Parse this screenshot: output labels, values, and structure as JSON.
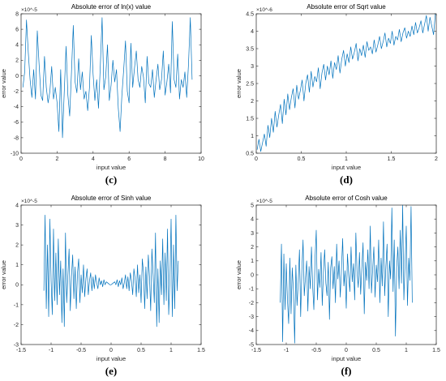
{
  "chart_data": [
    {
      "type": "line",
      "title": "Absolute error of ln(x) value",
      "xlabel": "input value",
      "ylabel": "error value",
      "exponent_label": "×10^-5",
      "panel_label": "(c)",
      "xlim": [
        0,
        10
      ],
      "ylim": [
        -10,
        8
      ],
      "xticks": [
        "0",
        "2",
        "4",
        "6",
        "8",
        "10"
      ],
      "yticks": [
        "-10",
        "-8",
        "-6",
        "-4",
        "-2",
        "0",
        "2",
        "4",
        "6",
        "8"
      ],
      "line_color": "#0072BD",
      "series": [
        {
          "x": [
            0.1,
            0.2,
            0.3,
            0.4,
            0.5,
            0.6,
            0.7,
            0.8,
            0.9,
            1.0,
            1.1,
            1.2,
            1.3,
            1.4,
            1.5,
            1.6,
            1.7,
            1.8,
            1.9,
            2.0,
            2.1,
            2.2,
            2.3,
            2.4,
            2.5,
            2.6,
            2.7,
            2.8,
            2.9,
            3.0,
            3.1,
            3.2,
            3.3,
            3.4,
            3.5,
            3.6,
            3.7,
            3.8,
            3.9,
            4.0,
            4.1,
            4.2,
            4.3,
            4.4,
            4.5,
            4.6,
            4.7,
            4.8,
            4.9,
            5.0,
            5.1,
            5.2,
            5.3,
            5.4,
            5.5,
            5.6,
            5.7,
            5.8,
            5.9,
            6.0,
            6.1,
            6.2,
            6.3,
            6.4,
            6.5,
            6.6,
            6.7,
            6.8,
            6.9,
            7.0,
            7.1,
            7.2,
            7.3,
            7.4,
            7.5,
            7.6,
            7.7,
            7.8,
            7.9,
            8.0,
            8.1,
            8.2,
            8.3,
            8.4,
            8.5,
            8.6,
            8.7,
            8.8,
            8.9,
            9.0,
            9.1,
            9.2,
            9.3,
            9.4,
            9.5
          ],
          "y": [
            -1.5,
            0.5,
            7.2,
            3,
            -0.5,
            -2.8,
            0.8,
            -3,
            5.8,
            1.5,
            -2.5,
            -3.2,
            2.5,
            -1.5,
            -3.5,
            -2,
            1.2,
            -3,
            -1.5,
            -3.5,
            -7.2,
            0.8,
            -8,
            -2,
            3.8,
            -2.5,
            -5.2,
            0.5,
            6.5,
            -0.8,
            -2.2,
            2.2,
            -1.8,
            0.5,
            -3,
            -2,
            -4.5,
            -1.5,
            5.2,
            0.2,
            -3.2,
            -0.5,
            -4.2,
            1.2,
            7.5,
            -1.8,
            -0.2,
            4,
            -3.2,
            -1.2,
            2,
            -0.8,
            0.8,
            -4.2,
            -7.2,
            -2.5,
            0.8,
            4.5,
            -2,
            -3.5,
            4.2,
            -1.5,
            1,
            3.2,
            -0.5,
            -1.5,
            1.2,
            -0.2,
            -3.5,
            2.5,
            -1,
            -1.5,
            0.8,
            -2.8,
            -0.5,
            1.5,
            -1.8,
            -0.5,
            3.2,
            -2.5,
            -0.8,
            1.5,
            -2.2,
            7,
            -0.5,
            -1.5,
            2.8,
            -3,
            -0.5,
            -1.5,
            0.5,
            -2.8,
            1.5,
            7.5,
            -0.5
          ]
        }
      ]
    },
    {
      "type": "line",
      "title": "Absolute error of Sqrt value",
      "xlabel": "input value",
      "ylabel": "error value",
      "exponent_label": "×10^-6",
      "panel_label": "(d)",
      "xlim": [
        0,
        2
      ],
      "ylim": [
        0.5,
        4.5
      ],
      "xticks": [
        "0",
        "0.5",
        "1",
        "1.5",
        "2"
      ],
      "yticks": [
        "0.5",
        "1",
        "1.5",
        "2",
        "2.5",
        "3",
        "3.5",
        "4",
        "4.5"
      ],
      "line_color": "#0072BD",
      "series": [
        {
          "x": [
            0.01,
            0.03,
            0.05,
            0.07,
            0.09,
            0.11,
            0.13,
            0.15,
            0.17,
            0.19,
            0.21,
            0.23,
            0.25,
            0.27,
            0.29,
            0.31,
            0.33,
            0.35,
            0.37,
            0.39,
            0.41,
            0.43,
            0.45,
            0.47,
            0.49,
            0.51,
            0.53,
            0.55,
            0.57,
            0.59,
            0.61,
            0.63,
            0.65,
            0.67,
            0.69,
            0.71,
            0.73,
            0.75,
            0.77,
            0.79,
            0.81,
            0.83,
            0.85,
            0.87,
            0.89,
            0.91,
            0.93,
            0.95,
            0.97,
            0.99,
            1.01,
            1.03,
            1.05,
            1.07,
            1.09,
            1.11,
            1.13,
            1.15,
            1.17,
            1.19,
            1.21,
            1.23,
            1.25,
            1.27,
            1.29,
            1.31,
            1.33,
            1.35,
            1.37,
            1.39,
            1.41,
            1.43,
            1.45,
            1.47,
            1.49,
            1.51,
            1.53,
            1.55,
            1.57,
            1.59,
            1.61,
            1.63,
            1.65,
            1.67,
            1.69,
            1.71,
            1.73,
            1.75,
            1.77,
            1.79,
            1.81,
            1.83,
            1.85,
            1.87,
            1.89,
            1.91,
            1.93,
            1.95,
            1.97,
            1.99
          ],
          "y": [
            0.6,
            0.9,
            0.55,
            0.8,
            1.05,
            0.7,
            1.3,
            0.95,
            1.5,
            1.1,
            1.7,
            1.25,
            1.6,
            1.9,
            1.35,
            2.05,
            1.6,
            2.2,
            1.75,
            2.1,
            2.35,
            1.8,
            2.45,
            2.05,
            2.3,
            2.6,
            2.0,
            2.5,
            2.75,
            2.25,
            2.85,
            2.4,
            2.7,
            2.55,
            2.95,
            2.35,
            2.8,
            3.05,
            2.6,
            3.0,
            2.75,
            3.15,
            2.65,
            3.1,
            2.9,
            3.3,
            2.8,
            3.2,
            3.45,
            3.0,
            3.35,
            3.1,
            3.55,
            3.2,
            3.4,
            3.65,
            3.15,
            3.5,
            3.3,
            3.6,
            3.25,
            3.7,
            3.45,
            3.55,
            3.35,
            3.75,
            3.4,
            3.6,
            3.85,
            3.5,
            3.7,
            3.95,
            3.55,
            3.8,
            3.65,
            4.0,
            3.6,
            3.85,
            3.75,
            4.05,
            3.7,
            3.95,
            4.1,
            3.8,
            4.0,
            3.85,
            4.15,
            3.9,
            4.25,
            3.95,
            4.1,
            4.3,
            3.95,
            4.2,
            4.45,
            4.0,
            4.4,
            4.15,
            3.9,
            4.5
          ]
        }
      ]
    },
    {
      "type": "line",
      "title": "Absolute error of Sinh value",
      "xlabel": "input value",
      "ylabel": "error value",
      "exponent_label": "×10^-5",
      "panel_label": "(e)",
      "xlim": [
        -1.5,
        1.5
      ],
      "ylim": [
        -3,
        4
      ],
      "xticks": [
        "-1.5",
        "-1",
        "-0.5",
        "0",
        "0.5",
        "1",
        "1.5"
      ],
      "yticks": [
        "-3",
        "-2",
        "-1",
        "0",
        "1",
        "2",
        "3",
        "4"
      ],
      "line_color": "#0072BD",
      "series": [
        {
          "x": [
            -1.12,
            -1.1,
            -1.08,
            -1.06,
            -1.04,
            -1.02,
            -1.0,
            -0.98,
            -0.96,
            -0.94,
            -0.92,
            -0.9,
            -0.88,
            -0.86,
            -0.84,
            -0.82,
            -0.8,
            -0.78,
            -0.76,
            -0.74,
            -0.72,
            -0.7,
            -0.68,
            -0.66,
            -0.64,
            -0.62,
            -0.6,
            -0.58,
            -0.56,
            -0.54,
            -0.52,
            -0.5,
            -0.48,
            -0.46,
            -0.44,
            -0.42,
            -0.4,
            -0.38,
            -0.36,
            -0.34,
            -0.32,
            -0.3,
            -0.28,
            -0.26,
            -0.24,
            -0.22,
            -0.2,
            -0.18,
            -0.16,
            -0.14,
            -0.12,
            -0.1,
            -0.08,
            -0.06,
            -0.04,
            -0.02,
            0.0,
            0.02,
            0.04,
            0.06,
            0.08,
            0.1,
            0.12,
            0.14,
            0.16,
            0.18,
            0.2,
            0.22,
            0.24,
            0.26,
            0.28,
            0.3,
            0.32,
            0.34,
            0.36,
            0.38,
            0.4,
            0.42,
            0.44,
            0.46,
            0.48,
            0.5,
            0.52,
            0.54,
            0.56,
            0.58,
            0.6,
            0.62,
            0.64,
            0.66,
            0.68,
            0.7,
            0.72,
            0.74,
            0.76,
            0.78,
            0.8,
            0.82,
            0.84,
            0.86,
            0.88,
            0.9,
            0.92,
            0.94,
            0.96,
            0.98,
            1.0,
            1.02,
            1.04,
            1.06,
            1.08,
            1.1,
            1.12
          ],
          "y": [
            -0.3,
            3.5,
            -1.2,
            2.0,
            -1.6,
            3.3,
            0.2,
            -1.5,
            2.8,
            -0.8,
            1.6,
            -1.0,
            2.3,
            -0.5,
            1.2,
            -1.9,
            0.8,
            -2.1,
            2.6,
            -0.9,
            0.5,
            1.8,
            -1.3,
            0.4,
            1.5,
            -0.7,
            0.9,
            -1.2,
            0.6,
            1.3,
            -0.9,
            0.5,
            -0.4,
            1.0,
            -0.6,
            0.3,
            0.8,
            -0.5,
            0.2,
            0.6,
            -0.3,
            0.4,
            -0.2,
            0.5,
            0.1,
            -0.2,
            0.35,
            0.0,
            0.2,
            -0.1,
            0.25,
            0.0,
            0.15,
            0.1,
            0.05,
            0.0,
            0.0,
            0.05,
            0.1,
            0.15,
            0.0,
            0.25,
            -0.1,
            0.2,
            0.0,
            0.35,
            -0.2,
            0.1,
            0.5,
            -0.2,
            0.4,
            -0.3,
            0.6,
            0.2,
            -0.5,
            0.8,
            0.3,
            -0.6,
            1.0,
            -0.4,
            0.5,
            -0.9,
            1.3,
            0.6,
            -1.2,
            0.9,
            -0.7,
            1.5,
            0.4,
            -1.3,
            1.8,
            0.5,
            -0.9,
            2.6,
            -2.1,
            0.8,
            -1.9,
            1.2,
            -0.5,
            2.3,
            -1.0,
            1.6,
            -0.8,
            2.8,
            -1.5,
            0.2,
            3.3,
            -1.6,
            2.0,
            -1.2,
            3.5,
            -0.3,
            1.2
          ]
        }
      ]
    },
    {
      "type": "line",
      "title": "Absolute error of Cosh value",
      "xlabel": "input value",
      "ylabel": "error value",
      "exponent_label": "×10^-5",
      "panel_label": "(f)",
      "xlim": [
        -1.5,
        1.5
      ],
      "ylim": [
        -5,
        5
      ],
      "xticks": [
        "-1.5",
        "-1",
        "-0.5",
        "0",
        "0.5",
        "1",
        "1.5"
      ],
      "yticks": [
        "-5",
        "-4",
        "-3",
        "-2",
        "-1",
        "0",
        "1",
        "2",
        "3",
        "4",
        "5"
      ],
      "line_color": "#0072BD",
      "series": [
        {
          "x": [
            -1.1,
            -1.08,
            -1.06,
            -1.04,
            -1.02,
            -1.0,
            -0.98,
            -0.96,
            -0.94,
            -0.92,
            -0.9,
            -0.88,
            -0.86,
            -0.84,
            -0.82,
            -0.8,
            -0.78,
            -0.76,
            -0.74,
            -0.72,
            -0.7,
            -0.68,
            -0.66,
            -0.64,
            -0.62,
            -0.6,
            -0.58,
            -0.56,
            -0.54,
            -0.52,
            -0.5,
            -0.48,
            -0.46,
            -0.44,
            -0.42,
            -0.4,
            -0.38,
            -0.36,
            -0.34,
            -0.32,
            -0.3,
            -0.28,
            -0.26,
            -0.24,
            -0.22,
            -0.2,
            -0.18,
            -0.16,
            -0.14,
            -0.12,
            -0.1,
            -0.08,
            -0.06,
            -0.04,
            -0.02,
            0.0,
            0.02,
            0.04,
            0.06,
            0.08,
            0.1,
            0.12,
            0.14,
            0.16,
            0.18,
            0.2,
            0.22,
            0.24,
            0.26,
            0.28,
            0.3,
            0.32,
            0.34,
            0.36,
            0.38,
            0.4,
            0.42,
            0.44,
            0.46,
            0.48,
            0.5,
            0.52,
            0.54,
            0.56,
            0.58,
            0.6,
            0.62,
            0.64,
            0.66,
            0.68,
            0.7,
            0.72,
            0.74,
            0.76,
            0.78,
            0.8,
            0.82,
            0.84,
            0.86,
            0.88,
            0.9,
            0.92,
            0.94,
            0.96,
            0.98,
            1.0,
            1.02,
            1.04,
            1.06,
            1.08,
            1.1
          ],
          "y": [
            -2.0,
            2.2,
            -4.8,
            1.5,
            -2.5,
            0.8,
            -1.8,
            -3.5,
            1.2,
            -2.8,
            0.5,
            -1.2,
            -4.9,
            0.7,
            -2.2,
            -0.5,
            1.8,
            -3.0,
            0.3,
            2.5,
            -1.5,
            -0.2,
            1.0,
            -2.6,
            0.6,
            -1.0,
            2.0,
            -0.8,
            -2.5,
            1.2,
            3.2,
            -1.8,
            0.4,
            -0.9,
            1.6,
            -2.2,
            0.2,
            1.8,
            -0.6,
            -1.5,
            0.9,
            -3.2,
            0.5,
            1.3,
            -1.0,
            0.6,
            -2.0,
            2.2,
            -0.3,
            1.0,
            -1.6,
            0.4,
            2.6,
            -0.8,
            0.3,
            -2.4,
            1.5,
            0.0,
            -1.2,
            2.0,
            -0.5,
            0.8,
            -1.8,
            3.0,
            0.2,
            -0.9,
            1.6,
            -1.4,
            0.5,
            2.3,
            -2.8,
            0.9,
            -0.4,
            1.8,
            -1.0,
            3.5,
            -1.3,
            0.4,
            2.0,
            -1.6,
            0.7,
            -0.5,
            2.5,
            -2.0,
            1.2,
            -0.8,
            3.8,
            -1.5,
            0.6,
            2.2,
            -3.0,
            1.0,
            -0.3,
            4.8,
            -1.2,
            2.5,
            -4.4,
            0.5,
            2.0,
            -1.0,
            3.2,
            -0.6,
            5.0,
            -1.8,
            0.8,
            3.5,
            -2.2,
            1.2,
            -0.4,
            4.9,
            -2.0
          ]
        }
      ]
    }
  ]
}
